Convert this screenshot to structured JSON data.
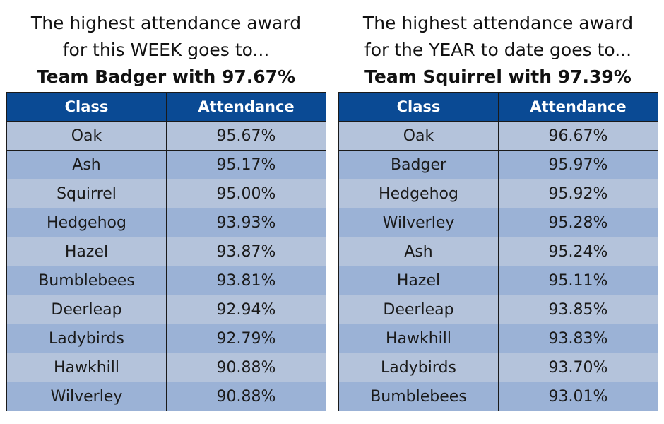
{
  "week": {
    "line1": "The highest attendance award",
    "line2": "for this WEEK goes to...",
    "winner": "Team Badger with 97.67%",
    "columns": [
      "Class",
      "Attendance"
    ],
    "rows": [
      {
        "class": "Oak",
        "attendance": "95.67%"
      },
      {
        "class": "Ash",
        "attendance": "95.17%"
      },
      {
        "class": "Squirrel",
        "attendance": "95.00%"
      },
      {
        "class": "Hedgehog",
        "attendance": "93.93%"
      },
      {
        "class": "Hazel",
        "attendance": "93.87%"
      },
      {
        "class": "Bumblebees",
        "attendance": "93.81%"
      },
      {
        "class": "Deerleap",
        "attendance": "92.94%"
      },
      {
        "class": "Ladybirds",
        "attendance": "92.79%"
      },
      {
        "class": "Hawkhill",
        "attendance": "90.88%"
      },
      {
        "class": "Wilverley",
        "attendance": "90.88%"
      }
    ]
  },
  "year": {
    "line1": "The highest attendance award",
    "line2": "for the YEAR to date goes to...",
    "winner": "Team Squirrel with 97.39%",
    "columns": [
      "Class",
      "Attendance"
    ],
    "rows": [
      {
        "class": "Oak",
        "attendance": "96.67%"
      },
      {
        "class": "Badger",
        "attendance": "95.97%"
      },
      {
        "class": "Hedgehog",
        "attendance": "95.92%"
      },
      {
        "class": "Wilverley",
        "attendance": "95.28%"
      },
      {
        "class": "Ash",
        "attendance": "95.24%"
      },
      {
        "class": "Hazel",
        "attendance": "95.11%"
      },
      {
        "class": "Deerleap",
        "attendance": "93.85%"
      },
      {
        "class": "Hawkhill",
        "attendance": "93.83%"
      },
      {
        "class": "Ladybirds",
        "attendance": "93.70%"
      },
      {
        "class": "Bumblebees",
        "attendance": "93.01%"
      }
    ]
  },
  "colors": {
    "header_bg": "#0a4a94",
    "row_light": "#b4c3db",
    "row_dark": "#9bb2d6"
  }
}
